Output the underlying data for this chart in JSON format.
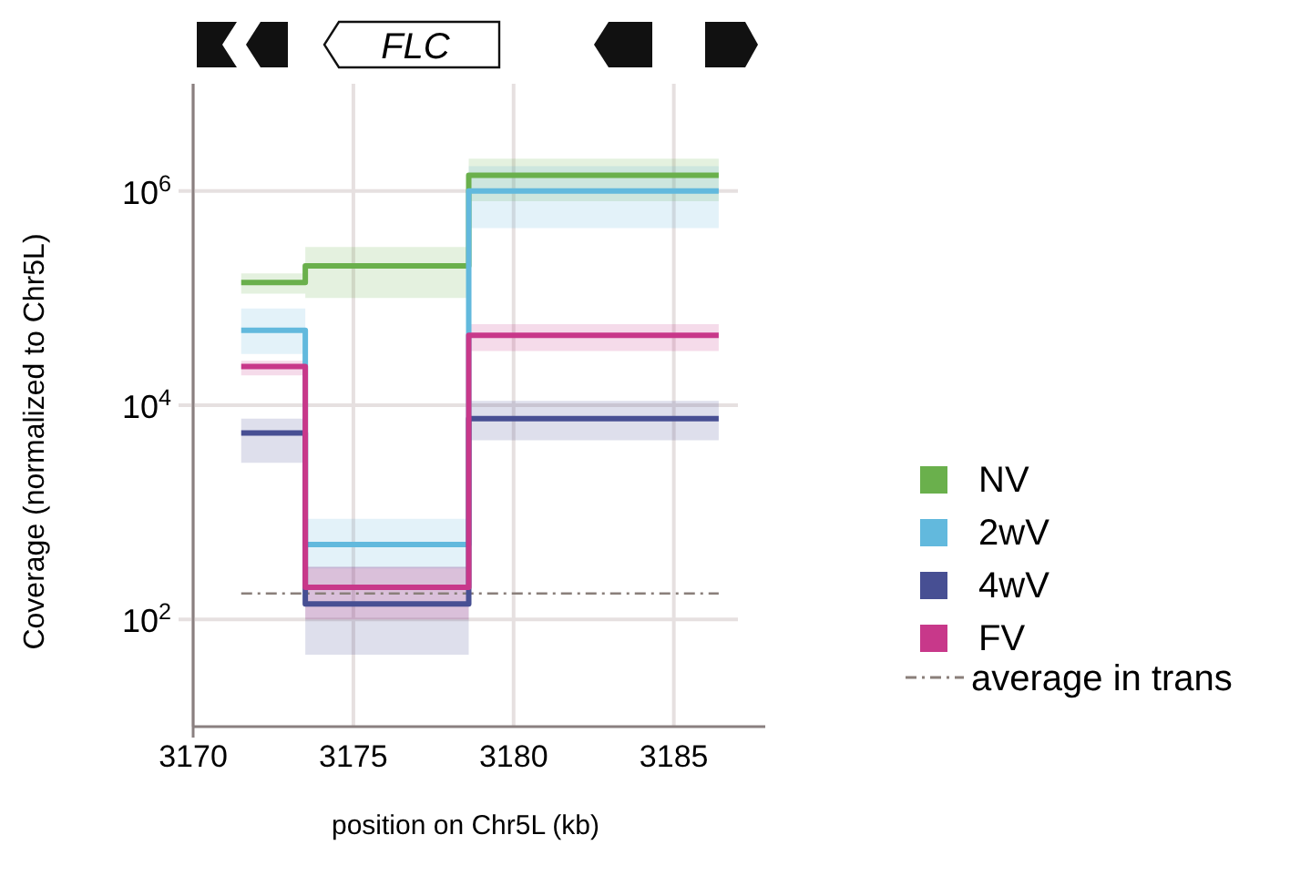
{
  "chart_data": {
    "type": "step",
    "xlabel": "position on Chr5L (kb)",
    "ylabel": "Coverage (normalized to Chr5L)",
    "annotations": [
      "FLC"
    ],
    "log": "y",
    "xlim": [
      3170,
      3187
    ],
    "xticks": [
      3170,
      3175,
      3180,
      3185
    ],
    "ylim": [
      10,
      10000000
    ],
    "yticks": [
      {
        "value": 100,
        "label": "10$^{2}$"
      },
      {
        "value": 10000,
        "label": "10$^{4}$"
      },
      {
        "value": 1000000,
        "label": "10$^{6}$"
      }
    ],
    "grid": true,
    "legend": "right",
    "x": [
      3171.5,
      3173.5,
      3178.6,
      3186.4
    ],
    "series": [
      {
        "name": "NV",
        "color": "#6ab04c",
        "values": [
          140000,
          200000,
          1400000,
          1400000
        ],
        "lower": [
          110000,
          100000,
          800000,
          800000
        ],
        "upper": [
          170000,
          300000,
          2000000,
          2000000
        ]
      },
      {
        "name": "2wV",
        "color": "#62b9dd",
        "values": [
          50000,
          500,
          1000000,
          1000000
        ],
        "lower": [
          30000,
          300,
          450000,
          450000
        ],
        "upper": [
          80000,
          870,
          1700000,
          1700000
        ]
      },
      {
        "name": "4wV",
        "color": "#474f93",
        "values": [
          5500,
          140,
          7500,
          7500
        ],
        "lower": [
          2900,
          47,
          4700,
          4700
        ],
        "upper": [
          7500,
          310,
          11000,
          11000
        ]
      },
      {
        "name": "FV",
        "color": "#c8388a",
        "values": [
          23000,
          200,
          45000,
          45000
        ],
        "lower": [
          19000,
          100,
          32000,
          32000
        ],
        "upper": [
          26000,
          310,
          57000,
          57000
        ]
      }
    ],
    "ref_lines": [
      {
        "axis": "y",
        "value": 175,
        "label": "average in trans",
        "color": "#8a7f7a",
        "line_style": "dashdot"
      }
    ]
  }
}
